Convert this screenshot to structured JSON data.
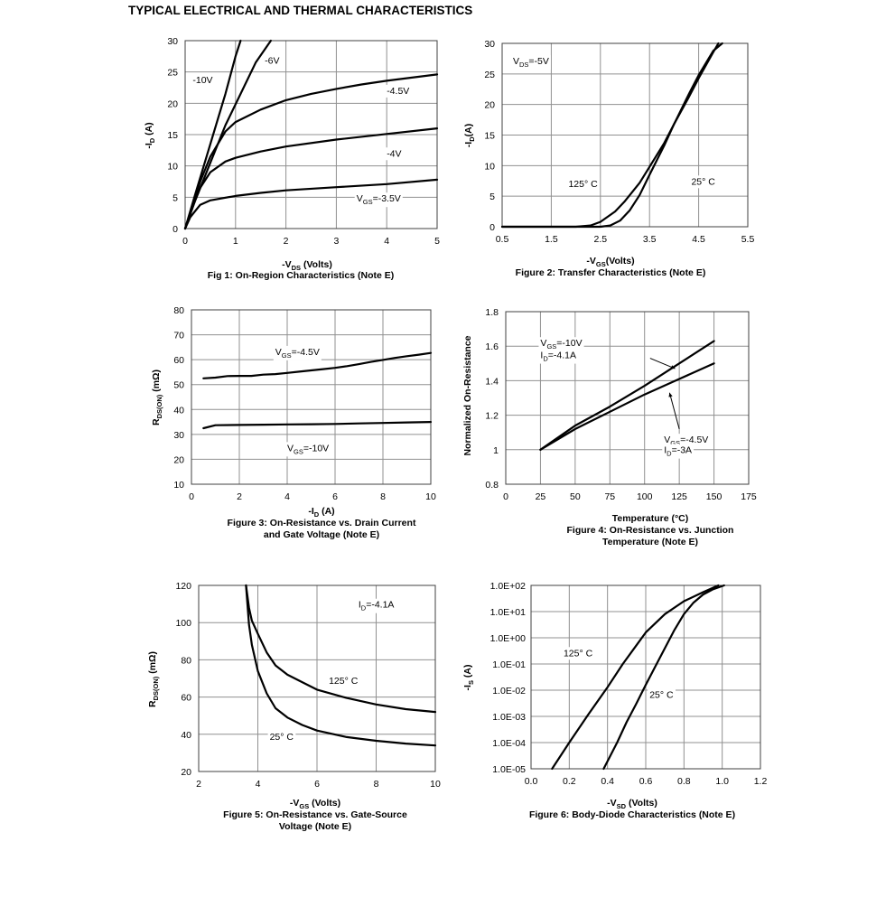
{
  "page": {
    "title": "TYPICAL ELECTRICAL AND THERMAL CHARACTERISTICS"
  },
  "chart_data": [
    {
      "type": "line",
      "caption": "Fig 1: On-Region Characteristics (Note E)",
      "xlabel": {
        "text": "-V",
        "sub": "DS",
        "post": " (Volts)"
      },
      "ylabel": {
        "text": "-I",
        "sub": "D",
        "post": " (A)"
      },
      "xlim": [
        0,
        5
      ],
      "ylim": [
        0,
        30
      ],
      "xticks": [
        0,
        1,
        2,
        3,
        4,
        5
      ],
      "xtick_labels": [
        "0",
        "1",
        "2",
        "3",
        "4",
        "5"
      ],
      "yticks": [
        0,
        5,
        10,
        15,
        20,
        25,
        30
      ],
      "ytick_labels": [
        "0",
        "5",
        "10",
        "15",
        "20",
        "25",
        "30"
      ],
      "grid": true,
      "series": [
        {
          "name": "-10V",
          "x": [
            0,
            0.2,
            0.5,
            0.8,
            1.0,
            1.1
          ],
          "y": [
            0,
            5.5,
            13.5,
            21.5,
            27.5,
            30
          ]
        },
        {
          "name": "-6V",
          "x": [
            0,
            0.2,
            0.5,
            0.8,
            1.1,
            1.4,
            1.7
          ],
          "y": [
            0,
            4.5,
            10.5,
            16.5,
            21.5,
            26.5,
            30
          ]
        },
        {
          "name": "-4.5V",
          "x": [
            0,
            0.1,
            0.3,
            0.5,
            0.8,
            1.0,
            1.5,
            2.0,
            2.5,
            3.0,
            3.5,
            4.0,
            4.5,
            5.0
          ],
          "y": [
            0,
            2.5,
            7.5,
            11.5,
            15.5,
            17,
            19,
            20.5,
            21.5,
            22.3,
            23,
            23.6,
            24.1,
            24.6
          ]
        },
        {
          "name": "-4V",
          "x": [
            0,
            0.1,
            0.3,
            0.5,
            0.8,
            1.0,
            1.5,
            2.0,
            3.0,
            4.0,
            5.0
          ],
          "y": [
            0,
            2.5,
            6.5,
            9.0,
            10.7,
            11.3,
            12.3,
            13.1,
            14.2,
            15.1,
            16.0
          ]
        },
        {
          "name": "VGS=-3.5V",
          "x": [
            0,
            0.1,
            0.3,
            0.5,
            1.0,
            1.5,
            2.0,
            3.0,
            4.0,
            5.0
          ],
          "y": [
            0,
            1.8,
            3.8,
            4.5,
            5.2,
            5.7,
            6.1,
            6.6,
            7.1,
            7.8
          ]
        }
      ],
      "annotations": [
        {
          "text": "-10V",
          "x": 0.15,
          "y": 23.2
        },
        {
          "text": "-6V",
          "x": 1.58,
          "y": 26.3
        },
        {
          "text": "-4.5V",
          "x": 4.0,
          "y": 21.5
        },
        {
          "text": "-4V",
          "x": 4.0,
          "y": 11.5
        },
        {
          "pre": "V",
          "sub": "GS",
          "text": "=-3.5V",
          "x": 3.4,
          "y": 4.3
        }
      ]
    },
    {
      "type": "line",
      "caption": "Figure 2: Transfer Characteristics (Note E)",
      "xlabel": {
        "text": "-V",
        "sub": "GS",
        "post": "(Volts)"
      },
      "ylabel": {
        "text": "-I",
        "sub": "D",
        "post": "(A)"
      },
      "xlim": [
        0.5,
        5.5
      ],
      "ylim": [
        0,
        30
      ],
      "xticks": [
        0.5,
        1.5,
        2.5,
        3.5,
        4.5,
        5.5
      ],
      "xtick_labels": [
        "0.5",
        "1.5",
        "2.5",
        "3.5",
        "4.5",
        "5.5"
      ],
      "yticks": [
        0,
        5,
        10,
        15,
        20,
        25,
        30
      ],
      "ytick_labels": [
        "0",
        "5",
        "10",
        "15",
        "20",
        "25",
        "30"
      ],
      "grid": true,
      "series": [
        {
          "name": "125° C",
          "x": [
            0.5,
            1.5,
            2.0,
            2.3,
            2.5,
            2.8,
            3.0,
            3.3,
            3.5,
            3.8,
            4.0,
            4.3,
            4.5,
            4.8,
            4.9
          ],
          "y": [
            0,
            0,
            0,
            0.2,
            0.8,
            2.5,
            4.2,
            7.2,
            9.8,
            13.7,
            16.8,
            21.2,
            24.3,
            28.6,
            30
          ]
        },
        {
          "name": "25° C",
          "x": [
            0.5,
            1.5,
            2.5,
            2.7,
            2.9,
            3.1,
            3.3,
            3.5,
            3.8,
            4.0,
            4.3,
            4.5,
            4.8,
            4.98
          ],
          "y": [
            0,
            0,
            0,
            0.2,
            1.0,
            2.7,
            5.2,
            8.5,
            13.3,
            16.8,
            21.7,
            24.8,
            28.8,
            30
          ]
        }
      ],
      "annotations": [
        {
          "pre": "V",
          "sub": "DS",
          "text": "=-5V",
          "x": 0.72,
          "y": 26.6
        },
        {
          "text": "125° C",
          "x": 1.85,
          "y": 6.5
        },
        {
          "text": "25° C",
          "x": 4.35,
          "y": 6.9
        }
      ]
    },
    {
      "type": "line",
      "caption": "Figure 3: On-Resistance vs. Drain Current and Gate Voltage (Note E)",
      "xlabel": {
        "text": "-I",
        "sub": "D",
        "post": " (A)"
      },
      "ylabel": {
        "text": "R",
        "sub": "DS(ON)",
        "post": " (mΩ)"
      },
      "xlim": [
        0,
        10
      ],
      "ylim": [
        10,
        80
      ],
      "xticks": [
        0,
        2,
        4,
        6,
        8,
        10
      ],
      "xtick_labels": [
        "0",
        "2",
        "4",
        "6",
        "8",
        "10"
      ],
      "yticks": [
        10,
        20,
        30,
        40,
        50,
        60,
        70,
        80
      ],
      "ytick_labels": [
        "10",
        "20",
        "30",
        "40",
        "50",
        "60",
        "70",
        "80"
      ],
      "grid": true,
      "series": [
        {
          "name": "VGS=-4.5V",
          "x": [
            0.5,
            1,
            1.5,
            2,
            2.5,
            3,
            3.5,
            4,
            4.5,
            5,
            5.5,
            6,
            6.5,
            7,
            7.5,
            8,
            8.5,
            9,
            9.5,
            10
          ],
          "y": [
            52.5,
            52.8,
            53.4,
            53.5,
            53.5,
            54,
            54.2,
            54.7,
            55.2,
            55.7,
            56.2,
            56.7,
            57.4,
            58.2,
            59.1,
            59.9,
            60.7,
            61.4,
            62,
            62.7
          ]
        },
        {
          "name": "VGS=-10V",
          "x": [
            0.5,
            1,
            2,
            3,
            4,
            5,
            6,
            7,
            8,
            9,
            10
          ],
          "y": [
            32.5,
            33.7,
            33.8,
            33.9,
            34,
            34.1,
            34.2,
            34.4,
            34.6,
            34.8,
            35
          ]
        }
      ],
      "annotations": [
        {
          "pre": "V",
          "sub": "GS",
          "text": "=-4.5V",
          "x": 3.5,
          "y": 61.9
        },
        {
          "pre": "V",
          "sub": "GS",
          "text": "=-10V",
          "x": 4.0,
          "y": 23.3
        }
      ]
    },
    {
      "type": "line",
      "caption": "Figure 4: On-Resistance vs. Junction Temperature (Note E)",
      "xlabel": {
        "text": "Temperature (°C)"
      },
      "ylabel": {
        "text": "Normalized On-Resistance"
      },
      "xlim": [
        0,
        175
      ],
      "ylim": [
        0.8,
        1.8
      ],
      "xticks": [
        0,
        25,
        50,
        75,
        100,
        125,
        150,
        175
      ],
      "xtick_labels": [
        "0",
        "25",
        "50",
        "75",
        "100",
        "125",
        "150",
        "175"
      ],
      "yticks": [
        0.8,
        1.0,
        1.2,
        1.4,
        1.6,
        1.8
      ],
      "ytick_labels": [
        "0.8",
        "1",
        "1.2",
        "1.4",
        "1.6",
        "1.8"
      ],
      "grid": true,
      "series": [
        {
          "name": "VGS=-10V ID=-4.1A",
          "x": [
            25,
            50,
            75,
            100,
            125,
            150
          ],
          "y": [
            1.0,
            1.14,
            1.25,
            1.37,
            1.5,
            1.63
          ]
        },
        {
          "name": "VGS=-4.5V ID=-3A",
          "x": [
            25,
            50,
            75,
            100,
            125,
            150
          ],
          "y": [
            1.0,
            1.12,
            1.22,
            1.32,
            1.41,
            1.5
          ]
        }
      ],
      "annotations": [
        {
          "pre": "V",
          "sub": "GS",
          "text": "=-10V",
          "x": 25,
          "y": 1.6
        },
        {
          "pre": "I",
          "sub": "D",
          "text": "=-4.1A",
          "x": 25,
          "y": 1.53
        },
        {
          "pre": "V",
          "sub": "GS",
          "text": "=-4.5V",
          "x": 114,
          "y": 1.04
        },
        {
          "pre": "I",
          "sub": "D",
          "text": "=-3A",
          "x": 114,
          "y": 0.98
        }
      ]
    },
    {
      "type": "line",
      "caption": "Figure 5: On-Resistance vs. Gate-Source Voltage (Note E)",
      "xlabel": {
        "text": "-V",
        "sub": "GS",
        "post": " (Volts)"
      },
      "ylabel": {
        "text": "R",
        "sub": "DS(ON)",
        "post": " (mΩ)"
      },
      "xlim": [
        2,
        10
      ],
      "ylim": [
        20,
        120
      ],
      "xticks": [
        2,
        4,
        6,
        8,
        10
      ],
      "xtick_labels": [
        "2",
        "4",
        "6",
        "8",
        "10"
      ],
      "yticks": [
        20,
        40,
        60,
        80,
        100,
        120
      ],
      "ytick_labels": [
        "20",
        "40",
        "60",
        "80",
        "100",
        "120"
      ],
      "grid": true,
      "series": [
        {
          "name": "125° C",
          "x": [
            3.6,
            3.7,
            3.8,
            4.0,
            4.3,
            4.6,
            5.0,
            5.5,
            6.0,
            7.0,
            8.0,
            9.0,
            10.0
          ],
          "y": [
            120,
            108,
            101,
            94,
            84,
            77,
            72,
            68,
            64,
            59.5,
            56,
            53.5,
            52
          ]
        },
        {
          "name": "25° C",
          "x": [
            3.6,
            3.7,
            3.8,
            4.0,
            4.3,
            4.6,
            5.0,
            5.5,
            6.0,
            7.0,
            8.0,
            9.0,
            10.0
          ],
          "y": [
            120,
            99,
            88,
            74,
            62,
            54,
            49,
            45,
            42,
            38.5,
            36.5,
            35,
            34
          ]
        }
      ],
      "annotations": [
        {
          "pre": "I",
          "sub": "D",
          "text": "=-4.1A",
          "x": 7.4,
          "y": 108
        },
        {
          "text": "125° C",
          "x": 6.4,
          "y": 67
        },
        {
          "text": "25° C",
          "x": 4.4,
          "y": 37
        }
      ]
    },
    {
      "type": "line",
      "caption": "Figure 6: Body-Diode Characteristics (Note E)",
      "xlabel": {
        "text": "-V",
        "sub": "SD",
        "post": " (Volts)"
      },
      "ylabel": {
        "text": "-I",
        "sub": "S",
        "post": " (A)"
      },
      "xlim": [
        0,
        1.2
      ],
      "ylim": [
        1e-05,
        100
      ],
      "yscale": "log",
      "xticks": [
        0,
        0.2,
        0.4,
        0.6,
        0.8,
        1.0,
        1.2
      ],
      "xtick_labels": [
        "0.0",
        "0.2",
        "0.4",
        "0.6",
        "0.8",
        "1.0",
        "1.2"
      ],
      "yticks": [
        1e-05,
        0.0001,
        0.001,
        0.01,
        0.1,
        1,
        10,
        100
      ],
      "ytick_labels": [
        "1.0E-05",
        "1.0E-04",
        "1.0E-03",
        "1.0E-02",
        "1.0E-01",
        "1.0E+00",
        "1.0E+01",
        "1.0E+02"
      ],
      "grid": true,
      "series": [
        {
          "name": "125° C",
          "x": [
            0.11,
            0.2,
            0.3,
            0.4,
            0.48,
            0.55,
            0.6,
            0.7,
            0.8,
            0.9,
            0.98
          ],
          "y": [
            1e-05,
            0.0001,
            0.0012,
            0.013,
            0.1,
            0.5,
            1.6,
            8,
            25,
            55,
            100
          ]
        },
        {
          "name": "25° C",
          "x": [
            0.38,
            0.45,
            0.5,
            0.55,
            0.6,
            0.65,
            0.7,
            0.75,
            0.8,
            0.85,
            0.9,
            0.95,
            1.01
          ],
          "y": [
            1e-05,
            0.0001,
            0.0006,
            0.003,
            0.016,
            0.08,
            0.4,
            2,
            8,
            22,
            45,
            70,
            100
          ]
        }
      ],
      "annotations": [
        {
          "text": "125° C",
          "x": 0.17,
          "y": 0.2
        },
        {
          "text": "25° C",
          "x": 0.62,
          "y": 0.005
        }
      ]
    }
  ]
}
